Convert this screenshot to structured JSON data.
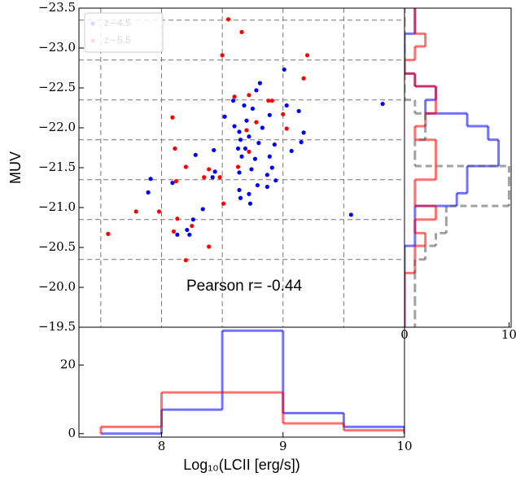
{
  "chart_data": [
    {
      "type": "scatter",
      "y_label": "MUV",
      "annotation": "Pearson r= -0.44",
      "xlim": [
        7.32,
        10
      ],
      "ylim": [
        -19.5,
        -23.5
      ],
      "yticks": [
        {
          "value": -23.5,
          "label": "−23.5"
        },
        {
          "value": -23,
          "label": "−23.0"
        },
        {
          "value": -22.5,
          "label": "−22.5"
        },
        {
          "value": -22,
          "label": "−22.0"
        },
        {
          "value": -21.5,
          "label": "−21.5"
        },
        {
          "value": -21,
          "label": "−21.0"
        },
        {
          "value": -20.5,
          "label": "−20.5"
        },
        {
          "value": -20,
          "label": "−20.0"
        },
        {
          "value": -19.5,
          "label": "−19.5"
        }
      ],
      "xgrid": [
        7.5,
        8,
        8.5,
        9,
        9.5
      ],
      "ygrid": [
        -23.35,
        -22.85,
        -22.35,
        -21.85,
        -21.35,
        -20.85,
        -20.35
      ],
      "grid": "dashed",
      "legend": "upper left",
      "series": [
        {
          "name": "z∼4.5",
          "color": "#0000ff",
          "x": [
            9.01,
            8.81,
            8.78,
            8.59,
            8.68,
            8.75,
            9.03,
            8.89,
            9.13,
            9.82,
            9.17,
            8.83,
            8.6,
            8.52,
            8.7,
            8.64,
            8.65,
            8.72,
            8.8,
            8.43,
            8.63,
            8.69,
            8.66,
            8.93,
            8.89,
            8.77,
            9.07,
            9.15,
            8.28,
            8.44,
            8.74,
            8.64,
            8.91,
            8.87,
            8.94,
            8.09,
            8.42,
            7.91,
            8.79,
            8.87,
            8.64,
            8.65,
            8.72,
            8.73,
            8.34,
            8.26,
            8.21,
            8.23,
            8.13,
            9.56,
            7.89
          ],
          "values": [
            -22.73,
            -22.56,
            -22.47,
            -22.34,
            -22.28,
            -22.24,
            -22.28,
            -22.16,
            -22.21,
            -22.3,
            -21.94,
            -22,
            -22.02,
            -22.14,
            -22.09,
            -21.95,
            -21.85,
            -21.89,
            -21.81,
            -21.72,
            -21.74,
            -21.74,
            -21.64,
            -21.79,
            -21.64,
            -21.61,
            -21.71,
            -21.82,
            -21.66,
            -21.45,
            -21.48,
            -21.44,
            -21.5,
            -21.41,
            -21.34,
            -21.31,
            -21.38,
            -21.36,
            -21.28,
            -21.26,
            -21.22,
            -21.12,
            -21.17,
            -21.05,
            -20.98,
            -20.85,
            -20.72,
            -20.66,
            -20.66,
            -20.91,
            -21.19
          ]
        },
        {
          "name": "z∼5.5",
          "color": "#ff0000",
          "x": [
            8.55,
            8.66,
            8.5,
            9.2,
            9.17,
            8.72,
            8.6,
            8.88,
            8.91,
            9,
            9.03,
            8.09,
            8.78,
            8.7,
            8.11,
            8.72,
            8.63,
            8.2,
            8.39,
            8.35,
            8.12,
            8.48,
            7.98,
            8.13,
            7.79,
            8.1,
            8.25,
            8.39,
            8.2,
            7.56,
            8.51
          ],
          "values": [
            -23.36,
            -23.2,
            -22.91,
            -22.91,
            -22.62,
            -22.41,
            -22.39,
            -22.34,
            -22.34,
            -22.17,
            -21.99,
            -22.13,
            -22.07,
            -21.97,
            -21.74,
            -21.7,
            -21.51,
            -21.51,
            -21.48,
            -21.38,
            -21.33,
            -21.38,
            -20.95,
            -20.86,
            -20.95,
            -20.7,
            -20.77,
            -20.51,
            -20.34,
            -20.67,
            -21.05
          ]
        }
      ]
    },
    {
      "type": "histogram",
      "orientation": "vertical",
      "x_label": "Log₁₀(LCII [erg/s])",
      "bins": [
        7.5,
        8,
        8.5,
        9,
        9.5,
        10
      ],
      "xlim": [
        7.32,
        10
      ],
      "ylim": [
        -1,
        31
      ],
      "xticks": [
        8,
        9,
        10
      ],
      "yticks": [
        0,
        20
      ],
      "series": [
        {
          "color": "#0000ff",
          "values": [
            0,
            7,
            30,
            6,
            2
          ]
        },
        {
          "color": "#ff0000",
          "values": [
            2,
            12,
            12,
            3,
            1
          ]
        }
      ]
    },
    {
      "type": "histogram",
      "orientation": "horizontal",
      "bins": [
        -23.85,
        -23.68,
        -23.52,
        -23.35,
        -23.18,
        -23.02,
        -22.85,
        -22.68,
        -22.52,
        -22.35,
        -22.18,
        -22.02,
        -21.85,
        -21.68,
        -21.52,
        -21.35,
        -21.18,
        -21.02,
        -20.85,
        -20.68,
        -20.52,
        -20.35,
        -20.18,
        -20.02,
        -19.85,
        -19.68,
        -19.52,
        -19.35
      ],
      "xlim": [
        0,
        10.2
      ],
      "ylim": [
        -19.5,
        -23.5
      ],
      "xticks": [
        0,
        10
      ],
      "series": [
        {
          "color": "#0000ff",
          "values": [
            0,
            0,
            1,
            1,
            0,
            0,
            0,
            1,
            3,
            2,
            6,
            8,
            9,
            9,
            6,
            6,
            5,
            1,
            1,
            1,
            0,
            0,
            0,
            0,
            0,
            0,
            0
          ]
        },
        {
          "color": "#ff0000",
          "values": [
            0,
            0,
            1,
            1,
            2,
            1,
            0,
            1,
            3,
            3,
            2,
            1,
            3,
            3,
            3,
            1,
            1,
            3,
            1,
            2,
            1,
            1,
            0,
            0,
            0,
            0,
            0
          ]
        },
        {
          "color": "#555555",
          "dashed": true,
          "values": [
            0,
            0,
            0,
            0,
            0,
            0,
            0,
            0,
            0,
            1,
            2,
            2,
            1,
            1,
            10,
            10,
            10,
            4,
            4,
            3,
            2,
            1,
            1,
            1,
            1,
            1,
            1
          ]
        }
      ]
    }
  ]
}
